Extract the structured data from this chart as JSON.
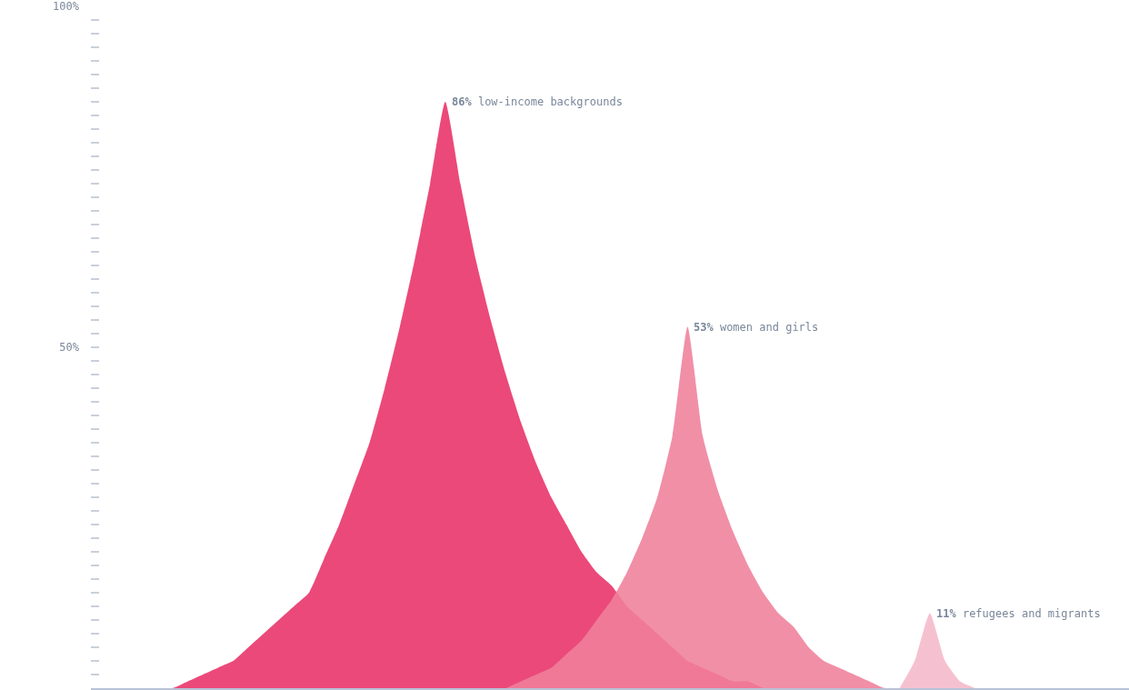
{
  "chart_data": {
    "type": "area",
    "tick_labels": "y",
    "categories": [
      null,
      null,
      null,
      null,
      null,
      null,
      null,
      null,
      null,
      null,
      null,
      null,
      null,
      null,
      null,
      null,
      null,
      null,
      null,
      null,
      null,
      null,
      null,
      null,
      null,
      null,
      null,
      null,
      null,
      null,
      null,
      null,
      null,
      null,
      null,
      null,
      null,
      null,
      null,
      null,
      null,
      null,
      null,
      null,
      null,
      null,
      null,
      null,
      null,
      null,
      null,
      null,
      null,
      null,
      null,
      null,
      null,
      null,
      null,
      null,
      null,
      null,
      null,
      null,
      null,
      null,
      null,
      null
    ],
    "series": [
      {
        "name": "low-income backgrounds",
        "color": "#e83067",
        "values": [
          null,
          null,
          null,
          0,
          0,
          0,
          1,
          2,
          3,
          4,
          6,
          8,
          10,
          12,
          14,
          19,
          24,
          30,
          36,
          44,
          53,
          63,
          74,
          86,
          74,
          63,
          54,
          46,
          39,
          33,
          28,
          24,
          20,
          17,
          15,
          12,
          10,
          8,
          6,
          4,
          3,
          2,
          1,
          1,
          0,
          null,
          null,
          null,
          null,
          null,
          null,
          null,
          null,
          null,
          null,
          null,
          null,
          null,
          null,
          null,
          null,
          null,
          null,
          null,
          null,
          null,
          null,
          null
        ],
        "value_labels": [
          null,
          null,
          null,
          null,
          null,
          null,
          null,
          null,
          null,
          null,
          null,
          null,
          null,
          null,
          null,
          null,
          null,
          null,
          null,
          null,
          null,
          null,
          null,
          "86%",
          null,
          null,
          null,
          null,
          null,
          null,
          null,
          null,
          null,
          null,
          null,
          null,
          null,
          null,
          null,
          null,
          null,
          null,
          null,
          null,
          null,
          null,
          null,
          null,
          null,
          null,
          null,
          null,
          null,
          null,
          null,
          null,
          null,
          null,
          null,
          null,
          null,
          null,
          null,
          null,
          null,
          null,
          null,
          null
        ]
      },
      {
        "name": "women and girls",
        "color": "#ef7f9b",
        "values": [
          null,
          null,
          null,
          null,
          null,
          null,
          null,
          null,
          null,
          null,
          null,
          null,
          null,
          null,
          null,
          null,
          null,
          null,
          null,
          null,
          null,
          null,
          null,
          null,
          null,
          null,
          null,
          0,
          1,
          2,
          3,
          5,
          7,
          10,
          13,
          17,
          22,
          28,
          37,
          53,
          37,
          29,
          23,
          18,
          14,
          11,
          9,
          6,
          4,
          3,
          2,
          1,
          0,
          0,
          null,
          null,
          null,
          null,
          null,
          null,
          null,
          null,
          null,
          null,
          null,
          null,
          null,
          null
        ],
        "value_labels": [
          null,
          null,
          null,
          null,
          null,
          null,
          null,
          null,
          null,
          null,
          null,
          null,
          null,
          null,
          null,
          null,
          null,
          null,
          null,
          null,
          null,
          null,
          null,
          null,
          null,
          null,
          null,
          null,
          null,
          null,
          null,
          null,
          null,
          null,
          null,
          null,
          null,
          null,
          null,
          "53%",
          null,
          null,
          null,
          null,
          null,
          null,
          null,
          null,
          null,
          null,
          null,
          null,
          null,
          null,
          null,
          null,
          null,
          null,
          null,
          null,
          null,
          null,
          null,
          null,
          null,
          null,
          null,
          null
        ]
      },
      {
        "name": "refugees and migrants",
        "color": "#f4b8ca",
        "values": [
          null,
          null,
          null,
          null,
          null,
          null,
          null,
          null,
          null,
          null,
          null,
          null,
          null,
          null,
          null,
          null,
          null,
          null,
          null,
          null,
          null,
          null,
          null,
          null,
          null,
          null,
          null,
          null,
          null,
          null,
          null,
          null,
          null,
          null,
          null,
          null,
          null,
          null,
          null,
          null,
          null,
          null,
          null,
          null,
          null,
          null,
          null,
          null,
          null,
          null,
          null,
          null,
          null,
          0,
          4,
          11,
          4,
          1,
          0,
          null,
          null,
          null,
          null,
          null,
          null,
          null,
          null,
          null
        ],
        "value_labels": [
          null,
          null,
          null,
          null,
          null,
          null,
          null,
          null,
          null,
          null,
          null,
          null,
          null,
          null,
          null,
          null,
          null,
          null,
          null,
          null,
          null,
          null,
          null,
          null,
          null,
          null,
          null,
          null,
          null,
          null,
          null,
          null,
          null,
          null,
          null,
          null,
          null,
          null,
          null,
          null,
          null,
          null,
          null,
          null,
          null,
          null,
          null,
          null,
          null,
          null,
          null,
          null,
          null,
          null,
          null,
          "11%",
          null,
          null,
          null,
          null,
          null,
          null,
          null,
          null,
          null,
          null,
          null,
          null
        ]
      }
    ],
    "ylim": [
      0,
      100
    ],
    "yticks": [
      {
        "value": 0,
        "label": null
      },
      {
        "value": 2,
        "label": null
      },
      {
        "value": 4,
        "label": null
      },
      {
        "value": 6,
        "label": null
      },
      {
        "value": 8,
        "label": null
      },
      {
        "value": 10,
        "label": null
      },
      {
        "value": 12,
        "label": null
      },
      {
        "value": 14,
        "label": null
      },
      {
        "value": 16,
        "label": null
      },
      {
        "value": 18,
        "label": null
      },
      {
        "value": 20,
        "label": null
      },
      {
        "value": 22,
        "label": null
      },
      {
        "value": 24,
        "label": null
      },
      {
        "value": 26,
        "label": null
      },
      {
        "value": 28,
        "label": null
      },
      {
        "value": 30,
        "label": null
      },
      {
        "value": 32,
        "label": null
      },
      {
        "value": 34,
        "label": null
      },
      {
        "value": 36,
        "label": null
      },
      {
        "value": 38,
        "label": null
      },
      {
        "value": 40,
        "label": null
      },
      {
        "value": 42,
        "label": null
      },
      {
        "value": 44,
        "label": null
      },
      {
        "value": 46,
        "label": null
      },
      {
        "value": 48,
        "label": null
      },
      {
        "value": 50,
        "label": "50%"
      },
      {
        "value": 52,
        "label": null
      },
      {
        "value": 54,
        "label": null
      },
      {
        "value": 56,
        "label": null
      },
      {
        "value": 58,
        "label": null
      },
      {
        "value": 60,
        "label": null
      },
      {
        "value": 62,
        "label": null
      },
      {
        "value": 64,
        "label": null
      },
      {
        "value": 66,
        "label": null
      },
      {
        "value": 68,
        "label": null
      },
      {
        "value": 70,
        "label": null
      },
      {
        "value": 72,
        "label": null
      },
      {
        "value": 74,
        "label": null
      },
      {
        "value": 76,
        "label": null
      },
      {
        "value": 78,
        "label": null
      },
      {
        "value": 80,
        "label": null
      },
      {
        "value": 82,
        "label": null
      },
      {
        "value": 84,
        "label": null
      },
      {
        "value": 86,
        "label": null
      },
      {
        "value": 88,
        "label": null
      },
      {
        "value": 90,
        "label": null
      },
      {
        "value": 92,
        "label": null
      },
      {
        "value": 94,
        "label": null
      },
      {
        "value": 96,
        "label": null
      },
      {
        "value": 98,
        "label": null
      },
      {
        "value": 100,
        "label": "100%"
      }
    ],
    "legend": false
  }
}
